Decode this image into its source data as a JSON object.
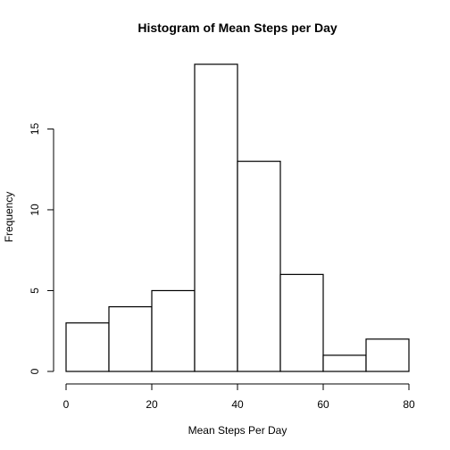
{
  "chart_data": {
    "type": "bar",
    "title": "Histogram of Mean Steps per Day",
    "xlabel": "Mean Steps Per Day",
    "ylabel": "Frequency",
    "bin_edges": [
      0,
      10,
      20,
      30,
      40,
      50,
      60,
      70,
      80
    ],
    "values": [
      3,
      4,
      5,
      19,
      13,
      6,
      1,
      2
    ],
    "xlim": [
      0,
      80
    ],
    "ylim": [
      0,
      19
    ],
    "x_ticks": [
      0,
      20,
      40,
      60,
      80
    ],
    "y_ticks": [
      0,
      5,
      10,
      15
    ],
    "grid": false,
    "colors": {
      "bar_fill": "#ffffff",
      "bar_stroke": "#000000",
      "axis": "#000000",
      "text": "#000000"
    }
  }
}
